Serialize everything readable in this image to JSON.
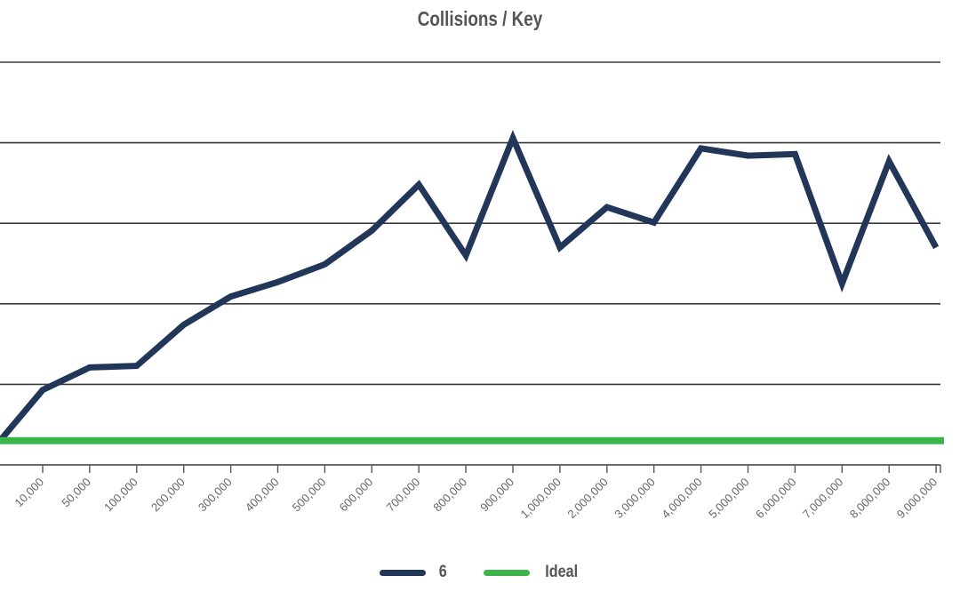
{
  "chart_data": {
    "type": "line",
    "title": "Collisions / Key",
    "categories": [
      "10,000",
      "50,000",
      "100,000",
      "200,000",
      "300,000",
      "400,000",
      "500,000",
      "600,000",
      "700,000",
      "800,000",
      "900,000",
      "1,000,000",
      "2,000,000",
      "3,000,000",
      "4,000,000",
      "5,000,000",
      "6,000,000",
      "7,000,000",
      "8,000,000",
      "9,000,000"
    ],
    "ylim": [
      0,
      5
    ],
    "yticks": [
      0,
      1,
      2,
      3,
      4,
      5
    ],
    "grid": true,
    "legend_position": "bottom",
    "series": [
      {
        "name": "6",
        "color": "#213658",
        "values": [
          0.93,
          1.21,
          1.23,
          1.74,
          2.09,
          2.27,
          2.49,
          2.91,
          3.48,
          2.6,
          4.06,
          2.7,
          3.2,
          3.01,
          3.93,
          3.84,
          3.86,
          2.25,
          3.77,
          2.7
        ]
      },
      {
        "name": "Ideal",
        "color": "#3cb54a",
        "values": [
          0.3,
          0.3,
          0.3,
          0.3,
          0.3,
          0.3,
          0.3,
          0.3,
          0.3,
          0.3,
          0.3,
          0.3,
          0.3,
          0.3,
          0.3,
          0.3,
          0.3,
          0.3,
          0.3,
          0.3
        ]
      }
    ],
    "first_point": 0.3
  }
}
